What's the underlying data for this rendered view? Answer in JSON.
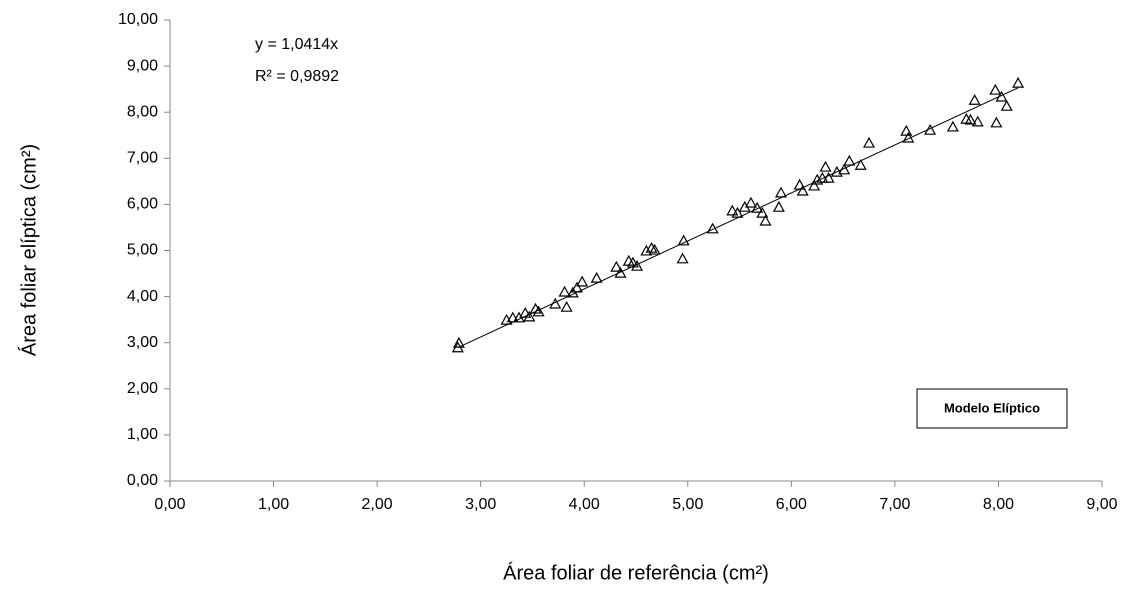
{
  "chart_data": {
    "type": "scatter",
    "x_label": "Área foliar de referência (cm²)",
    "y_label": "Área foliar elíptica (cm²)",
    "annotation": "Modelo Elíptico",
    "marker": "triangle",
    "color": "#000000",
    "trendline": {
      "slope": 1.0414,
      "equation": "y = 1,0414x",
      "r2": "R² = 0,9892"
    },
    "x": [
      2.78,
      2.79,
      3.25,
      3.31,
      3.37,
      3.43,
      3.47,
      3.53,
      3.56,
      3.72,
      3.81,
      3.83,
      3.89,
      3.93,
      3.98,
      4.12,
      4.31,
      4.35,
      4.43,
      4.47,
      4.51,
      4.6,
      4.65,
      4.68,
      4.96,
      4.95,
      5.24,
      5.43,
      5.48,
      5.55,
      5.61,
      5.67,
      5.72,
      5.75,
      5.88,
      5.9,
      6.08,
      6.11,
      6.22,
      6.25,
      6.3,
      6.33,
      6.36,
      6.44,
      6.51,
      6.56,
      6.67,
      6.75,
      7.11,
      7.13,
      7.34,
      7.56,
      7.69,
      7.73,
      7.77,
      7.8,
      7.97,
      7.98,
      8.03,
      8.08,
      8.19
    ],
    "y": [
      2.89,
      2.99,
      3.49,
      3.54,
      3.54,
      3.64,
      3.56,
      3.73,
      3.67,
      3.84,
      4.1,
      3.77,
      4.08,
      4.19,
      4.32,
      4.4,
      4.64,
      4.51,
      4.77,
      4.73,
      4.66,
      4.99,
      5.05,
      5.01,
      5.21,
      4.82,
      5.47,
      5.86,
      5.81,
      5.94,
      6.03,
      5.92,
      5.81,
      5.64,
      5.94,
      6.25,
      6.42,
      6.29,
      6.4,
      6.53,
      6.57,
      6.81,
      6.57,
      6.7,
      6.75,
      6.94,
      6.85,
      7.33,
      7.59,
      7.44,
      7.61,
      7.68,
      7.85,
      7.83,
      8.26,
      7.79,
      8.48,
      7.77,
      8.33,
      8.13,
      8.63
    ],
    "xlim": [
      0,
      9
    ],
    "ylim": [
      0,
      10
    ],
    "xticks": [
      {
        "value": 0,
        "label": "0,00"
      },
      {
        "value": 1,
        "label": "1,00"
      },
      {
        "value": 2,
        "label": "2,00"
      },
      {
        "value": 3,
        "label": "3,00"
      },
      {
        "value": 4,
        "label": "4,00"
      },
      {
        "value": 5,
        "label": "5,00"
      },
      {
        "value": 6,
        "label": "6,00"
      },
      {
        "value": 7,
        "label": "7,00"
      },
      {
        "value": 8,
        "label": "8,00"
      },
      {
        "value": 9,
        "label": "9,00"
      }
    ],
    "yticks": [
      {
        "value": 0,
        "label": "0,00"
      },
      {
        "value": 1,
        "label": "1,00"
      },
      {
        "value": 2,
        "label": "2,00"
      },
      {
        "value": 3,
        "label": "3,00"
      },
      {
        "value": 4,
        "label": "4,00"
      },
      {
        "value": 5,
        "label": "5,00"
      },
      {
        "value": 6,
        "label": "6,00"
      },
      {
        "value": 7,
        "label": "7,00"
      },
      {
        "value": 8,
        "label": "8,00"
      },
      {
        "value": 9,
        "label": "9,00"
      },
      {
        "value": 10,
        "label": "10,00"
      }
    ],
    "grid": false
  }
}
